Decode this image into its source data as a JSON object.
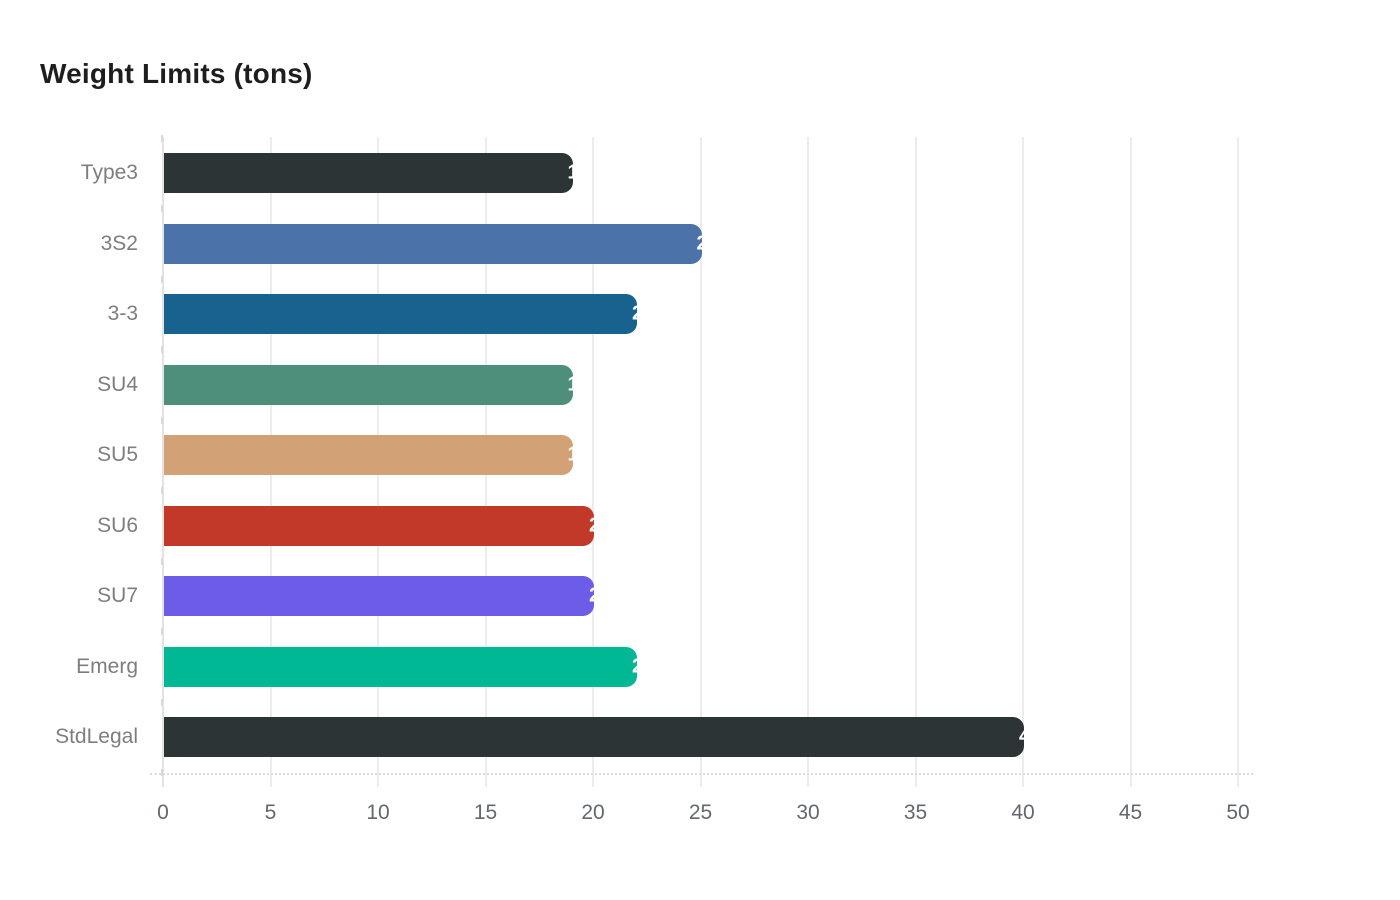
{
  "title": "Weight Limits (tons)",
  "chart_data": {
    "type": "bar",
    "orientation": "horizontal",
    "title": "Weight Limits (tons)",
    "categories": [
      "Type3",
      "3S2",
      "3-3",
      "SU4",
      "SU5",
      "SU6",
      "SU7",
      "Emerg",
      "StdLegal"
    ],
    "values": [
      19,
      25,
      22,
      19,
      19,
      20,
      20,
      22,
      40
    ],
    "bar_colors": [
      "#2d3436",
      "#4b72a9",
      "#17628f",
      "#4e8f7c",
      "#d2a276",
      "#c2392a",
      "#6c5ce7",
      "#00b894",
      "#2d3436"
    ],
    "value_label_color": "#ffffff",
    "xlabel": "",
    "ylabel": "",
    "xlim": [
      0,
      50
    ],
    "xticks": [
      0,
      5,
      10,
      15,
      20,
      25,
      30,
      35,
      40,
      45,
      50
    ],
    "grid": "vertical-only",
    "legend": "none"
  },
  "colors": {
    "background": "#ffffff",
    "title_text": "#1e1e1e",
    "category_label": "#7e7e7e",
    "tick_label": "#62686d",
    "gridline": "#ececec",
    "axis_line": "#dcdcdc"
  }
}
